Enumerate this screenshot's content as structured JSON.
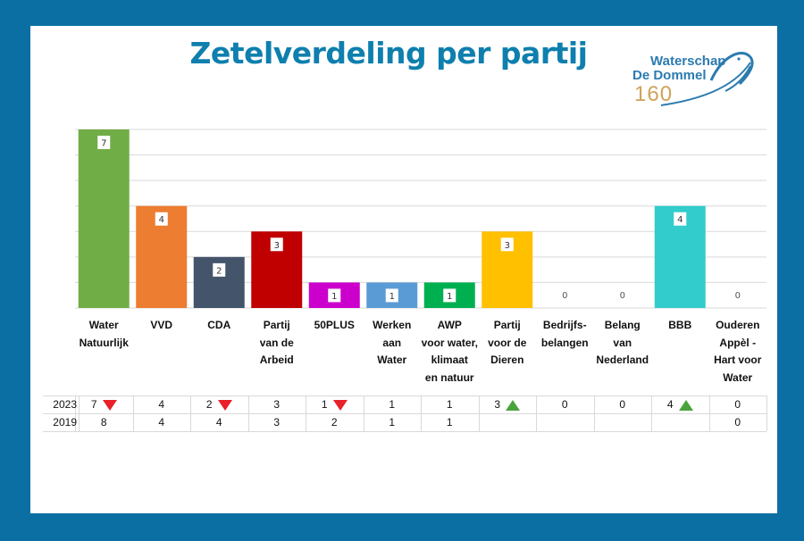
{
  "title": "Zetelverdeling per partij",
  "logo": {
    "line1": "Waterschap",
    "line2": "De Dommel",
    "line3": "160"
  },
  "chart_data": {
    "type": "bar",
    "title": "Zetelverdeling per partij",
    "categories": [
      "Water\nNatuurlijk",
      "VVD",
      "CDA",
      "Partij\nvan de\nArbeid",
      "50PLUS",
      "Werken\naan\nWater",
      "AWP\nvoor water,\nklimaat\nen natuur",
      "Partij\nvoor de\nDieren",
      "Bedrijfs-\nbelangen",
      "Belang\nvan\nNederland",
      "BBB",
      "Ouderen\nAppèl -\nHart voor\nWater"
    ],
    "values": [
      7,
      4,
      2,
      3,
      1,
      1,
      1,
      3,
      0,
      0,
      4,
      0
    ],
    "colors": [
      "#70ad47",
      "#ed7d31",
      "#44546a",
      "#c00000",
      "#cc00cc",
      "#5b9bd5",
      "#00b050",
      "#ffc000",
      "#70ad47",
      "#70ad47",
      "#33cccc",
      "#70ad47"
    ],
    "ylim": [
      0,
      7
    ],
    "grid": true
  },
  "table": {
    "rows": [
      {
        "year": "2023",
        "values": [
          "7",
          "4",
          "2",
          "3",
          "1",
          "1",
          "1",
          "3",
          "0",
          "0",
          "4",
          "0"
        ],
        "trend": [
          "down",
          "",
          "down",
          "",
          "down",
          "",
          "",
          "up",
          "",
          "",
          "up",
          ""
        ]
      },
      {
        "year": "2019",
        "values": [
          "8",
          "4",
          "4",
          "3",
          "2",
          "1",
          "1",
          "",
          "",
          "",
          "",
          "0"
        ],
        "trend": [
          "",
          "",
          "",
          "",
          "",
          "",
          "",
          "",
          "",
          "",
          "",
          ""
        ]
      }
    ]
  }
}
